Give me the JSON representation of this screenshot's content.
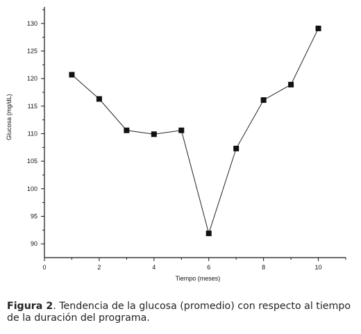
{
  "chart_data": {
    "type": "line",
    "xlabel": "Tiempo (meses)",
    "ylabel": "Glucosa (mg/dL)",
    "xlim": [
      0,
      11
    ],
    "ylim": [
      87.5,
      133
    ],
    "x_ticks": [
      0,
      2,
      4,
      6,
      8,
      10
    ],
    "y_ticks": [
      90,
      95,
      100,
      105,
      110,
      115,
      120,
      125,
      130
    ],
    "grid": false,
    "series": [
      {
        "x": [
          1,
          2,
          3,
          4,
          5,
          6,
          7,
          8,
          9,
          10
        ],
        "values": [
          120.7,
          116.3,
          110.6,
          109.9,
          110.6,
          91.9,
          107.3,
          116.1,
          118.9,
          129.1
        ]
      }
    ]
  },
  "caption": {
    "label": "Figura 2",
    "text": ". Tendencia de la glucosa (promedio) con respecto al tiempo de la duración del programa."
  }
}
